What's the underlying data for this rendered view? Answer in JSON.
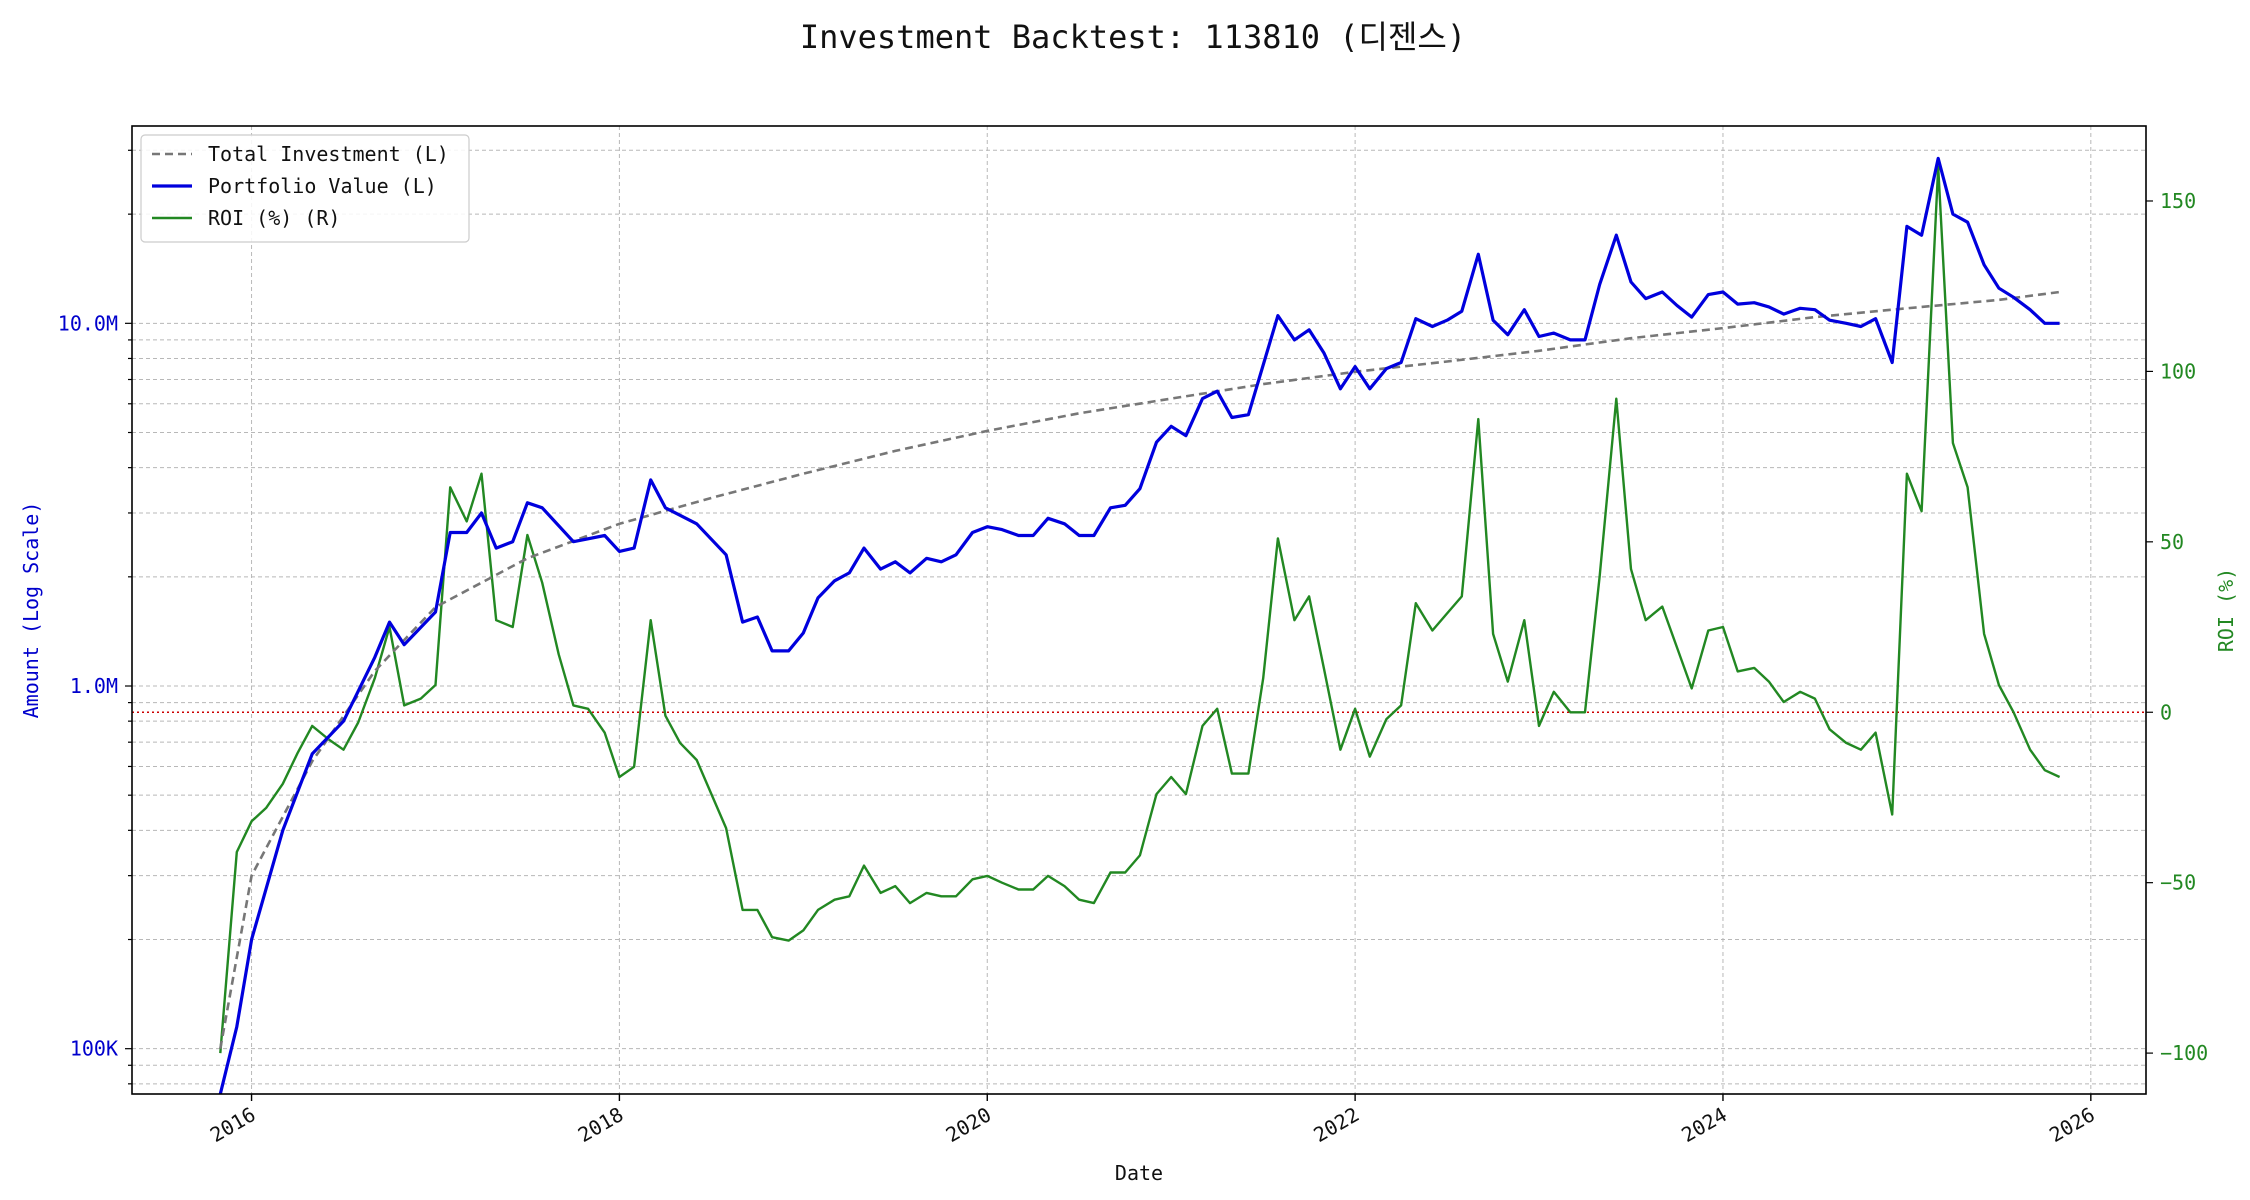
{
  "chart_data": {
    "type": "line",
    "title": "Investment Backtest: 113810 (디젠스)",
    "xlabel": "Date",
    "ylabel_left": "Amount (Log Scale)",
    "ylabel_right": "ROI (%)",
    "xlim": [
      2015.35,
      2026.3
    ],
    "ylim_left": [
      75000,
      35000000
    ],
    "ylim_right": [
      -112,
      172
    ],
    "y_scale_left": "log",
    "grid": true,
    "legend_position": "top-left",
    "x_ticks": [
      {
        "value": 2016,
        "label": "2016"
      },
      {
        "value": 2018,
        "label": "2018"
      },
      {
        "value": 2020,
        "label": "2020"
      },
      {
        "value": 2022,
        "label": "2022"
      },
      {
        "value": 2024,
        "label": "2024"
      },
      {
        "value": 2026,
        "label": "2026"
      }
    ],
    "y_ticks_left": [
      {
        "value": 100000,
        "label": "100K"
      },
      {
        "value": 1000000,
        "label": "1.0M"
      },
      {
        "value": 10000000,
        "label": "10.0M"
      }
    ],
    "y_ticks_right": [
      {
        "value": -100,
        "label": "−100"
      },
      {
        "value": -50,
        "label": "−50"
      },
      {
        "value": 0,
        "label": "0"
      },
      {
        "value": 50,
        "label": "50"
      },
      {
        "value": 100,
        "label": "100"
      },
      {
        "value": 150,
        "label": "150"
      }
    ],
    "reference_line": {
      "axis": "right",
      "value": 0,
      "color": "#cc0000",
      "style": "dotted"
    },
    "series": [
      {
        "name": "Total Investment (L)",
        "axis": "left",
        "color": "#777777",
        "style": "dashed",
        "x": [
          2015.83,
          2016.0,
          2016.33,
          2016.67,
          2017.0,
          2017.5,
          2018.0,
          2018.5,
          2019.0,
          2019.5,
          2020.0,
          2020.5,
          2021.0,
          2021.5,
          2022.0,
          2022.5,
          2023.0,
          2023.5,
          2024.0,
          2024.5,
          2025.0,
          2025.5,
          2025.83
        ],
        "values": [
          100000,
          300000,
          620000,
          1100000,
          1650000,
          2250000,
          2800000,
          3300000,
          3850000,
          4450000,
          5050000,
          5650000,
          6200000,
          6800000,
          7350000,
          7850000,
          8400000,
          9100000,
          9700000,
          10400000,
          11000000,
          11600000,
          12200000
        ]
      },
      {
        "name": "Portfolio Value (L)",
        "axis": "left",
        "color": "#0000dd",
        "style": "solid",
        "x": [
          2015.83,
          2015.92,
          2016.0,
          2016.17,
          2016.33,
          2016.5,
          2016.67,
          2016.75,
          2016.83,
          2017.0,
          2017.08,
          2017.17,
          2017.25,
          2017.33,
          2017.42,
          2017.5,
          2017.58,
          2017.75,
          2017.92,
          2018.0,
          2018.08,
          2018.17,
          2018.25,
          2018.42,
          2018.58,
          2018.67,
          2018.75,
          2018.83,
          2018.92,
          2019.0,
          2019.08,
          2019.17,
          2019.25,
          2019.33,
          2019.42,
          2019.5,
          2019.58,
          2019.67,
          2019.75,
          2019.83,
          2019.92,
          2020.0,
          2020.08,
          2020.17,
          2020.25,
          2020.33,
          2020.42,
          2020.5,
          2020.58,
          2020.67,
          2020.75,
          2020.83,
          2020.92,
          2021.0,
          2021.08,
          2021.17,
          2021.25,
          2021.33,
          2021.42,
          2021.58,
          2021.67,
          2021.75,
          2021.83,
          2021.92,
          2022.0,
          2022.08,
          2022.17,
          2022.25,
          2022.33,
          2022.42,
          2022.5,
          2022.58,
          2022.67,
          2022.75,
          2022.83,
          2022.92,
          2023.0,
          2023.08,
          2023.17,
          2023.25,
          2023.33,
          2023.42,
          2023.5,
          2023.58,
          2023.67,
          2023.75,
          2023.83,
          2023.92,
          2024.0,
          2024.08,
          2024.17,
          2024.25,
          2024.33,
          2024.42,
          2024.5,
          2024.58,
          2024.67,
          2024.75,
          2024.83,
          2024.92,
          2025.0,
          2025.08,
          2025.17,
          2025.25,
          2025.33,
          2025.42,
          2025.5,
          2025.58,
          2025.67,
          2025.75,
          2025.83
        ],
        "values": [
          75000,
          115000,
          200000,
          400000,
          650000,
          800000,
          1200000,
          1500000,
          1300000,
          1600000,
          2650000,
          2650000,
          3000000,
          2400000,
          2500000,
          3200000,
          3100000,
          2500000,
          2600000,
          2350000,
          2400000,
          3700000,
          3100000,
          2800000,
          2300000,
          1500000,
          1550000,
          1250000,
          1250000,
          1400000,
          1750000,
          1950000,
          2050000,
          2400000,
          2100000,
          2200000,
          2050000,
          2250000,
          2200000,
          2300000,
          2650000,
          2750000,
          2700000,
          2600000,
          2600000,
          2900000,
          2800000,
          2600000,
          2600000,
          3100000,
          3150000,
          3500000,
          4700000,
          5200000,
          4900000,
          6200000,
          6500000,
          5500000,
          5600000,
          10500000,
          9000000,
          9600000,
          8300000,
          6600000,
          7600000,
          6600000,
          7500000,
          7800000,
          10300000,
          9800000,
          10200000,
          10800000,
          15500000,
          10200000,
          9300000,
          10900000,
          9200000,
          9400000,
          9000000,
          9000000,
          12800000,
          17500000,
          13000000,
          11700000,
          12200000,
          11200000,
          10400000,
          12000000,
          12200000,
          11300000,
          11400000,
          11100000,
          10600000,
          11000000,
          10900000,
          10200000,
          10000000,
          9800000,
          10300000,
          7800000,
          18500000,
          17500000,
          28500000,
          20000000,
          19000000,
          14500000,
          12500000,
          11800000,
          10900000,
          10000000,
          10000000
        ]
      },
      {
        "name": "ROI (%) (R)",
        "axis": "right",
        "color": "#228822",
        "style": "solid",
        "x": [
          2015.83,
          2015.92,
          2016.0,
          2016.08,
          2016.17,
          2016.25,
          2016.33,
          2016.42,
          2016.5,
          2016.58,
          2016.67,
          2016.75,
          2016.83,
          2016.92,
          2017.0,
          2017.08,
          2017.17,
          2017.25,
          2017.33,
          2017.42,
          2017.5,
          2017.58,
          2017.67,
          2017.75,
          2017.83,
          2017.92,
          2018.0,
          2018.08,
          2018.17,
          2018.25,
          2018.33,
          2018.42,
          2018.5,
          2018.58,
          2018.67,
          2018.75,
          2018.83,
          2018.92,
          2019.0,
          2019.08,
          2019.17,
          2019.25,
          2019.33,
          2019.42,
          2019.5,
          2019.58,
          2019.67,
          2019.75,
          2019.83,
          2019.92,
          2020.0,
          2020.08,
          2020.17,
          2020.25,
          2020.33,
          2020.42,
          2020.5,
          2020.58,
          2020.67,
          2020.75,
          2020.83,
          2020.92,
          2021.0,
          2021.08,
          2021.17,
          2021.25,
          2021.33,
          2021.42,
          2021.5,
          2021.58,
          2021.67,
          2021.75,
          2021.83,
          2021.92,
          2022.0,
          2022.08,
          2022.17,
          2022.25,
          2022.33,
          2022.42,
          2022.5,
          2022.58,
          2022.67,
          2022.75,
          2022.83,
          2022.92,
          2023.0,
          2023.08,
          2023.17,
          2023.25,
          2023.33,
          2023.42,
          2023.5,
          2023.58,
          2023.67,
          2023.75,
          2023.83,
          2023.92,
          2024.0,
          2024.08,
          2024.17,
          2024.25,
          2024.33,
          2024.42,
          2024.5,
          2024.58,
          2024.67,
          2024.75,
          2024.83,
          2024.92,
          2025.0,
          2025.08,
          2025.17,
          2025.25,
          2025.33,
          2025.42,
          2025.5,
          2025.58,
          2025.67,
          2025.75,
          2025.83
        ],
        "values": [
          -100,
          -41,
          -32,
          -28,
          -21,
          -12,
          -4,
          -8,
          -11,
          -3,
          10,
          25,
          2,
          4,
          8,
          66,
          56,
          70,
          27,
          25,
          52,
          38,
          17,
          2,
          1,
          -6,
          -19,
          -16,
          27,
          -1,
          -9,
          -14,
          -24,
          -34,
          -58,
          -58,
          -66,
          -67,
          -64,
          -58,
          -55,
          -54,
          -45,
          -53,
          -51,
          -56,
          -53,
          -54,
          -54,
          -49,
          -48,
          -50,
          -52,
          -52,
          -48,
          -51,
          -55,
          -56,
          -47,
          -47,
          -42,
          -24,
          -19,
          -24,
          -4,
          1,
          -18,
          -18,
          10,
          51,
          27,
          34,
          13,
          -11,
          1,
          -13,
          -2,
          2,
          32,
          24,
          29,
          34,
          86,
          23,
          9,
          27,
          -4,
          6,
          0,
          0,
          40,
          92,
          42,
          27,
          31,
          19,
          7,
          24,
          25,
          12,
          13,
          9,
          3,
          6,
          4,
          -5,
          -9,
          -11,
          -6,
          -30,
          70,
          59,
          160,
          79,
          66,
          23,
          8,
          0,
          -11,
          -17,
          -19
        ]
      }
    ]
  }
}
